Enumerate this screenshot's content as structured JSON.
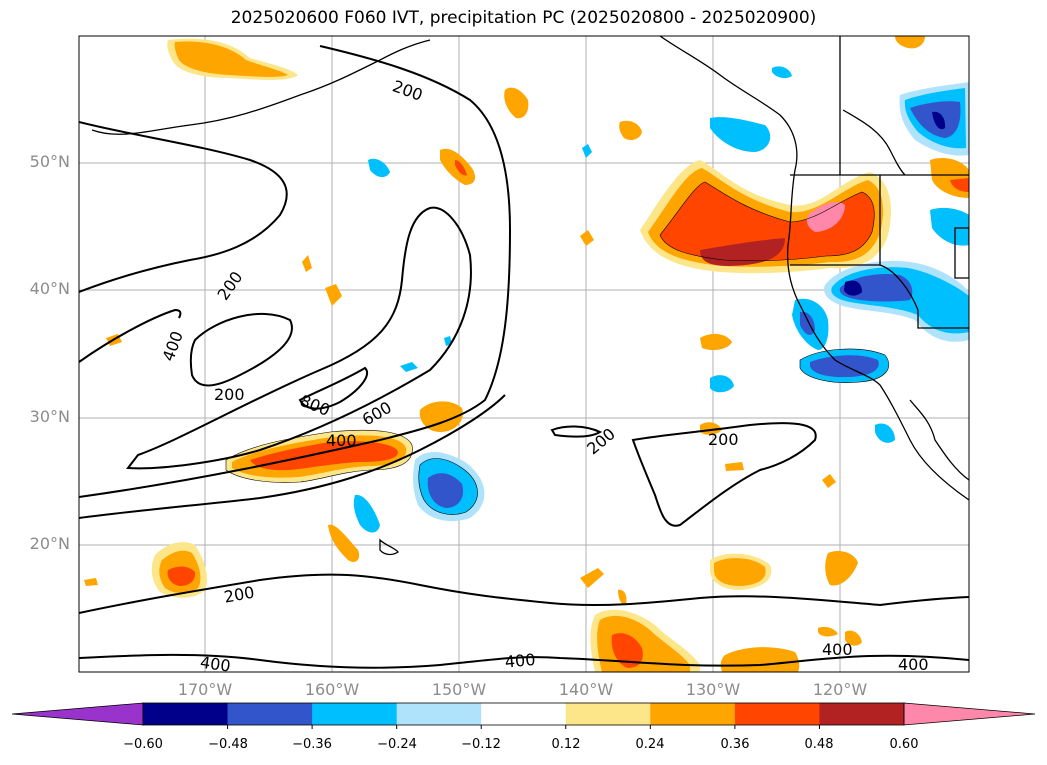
{
  "title": "2025020600 F060 IVT, precipitation PC (2025020800 - 2025020900)",
  "lat_labels": [
    "50°N",
    "40°N",
    "30°N",
    "20°N"
  ],
  "lon_labels": [
    "170°W",
    "160°W",
    "150°W",
    "140°W",
    "130°W",
    "120°W"
  ],
  "contour_labels": [
    "200",
    "200",
    "200",
    "200",
    "200",
    "200",
    "400",
    "400",
    "400",
    "400",
    "400",
    "400",
    "600",
    "800"
  ],
  "colorbar": {
    "ticks": [
      "−0.60",
      "−0.48",
      "−0.36",
      "−0.24",
      "−0.12",
      "0.12",
      "0.24",
      "0.36",
      "0.48",
      "0.60"
    ],
    "colors": [
      "#9933cc",
      "#00008b",
      "#3355cc",
      "#00bfff",
      "#aee3fb",
      "#ffffff",
      "#fde68a",
      "#ffa500",
      "#ff4500",
      "#b22222",
      "#ff88aa"
    ]
  }
}
